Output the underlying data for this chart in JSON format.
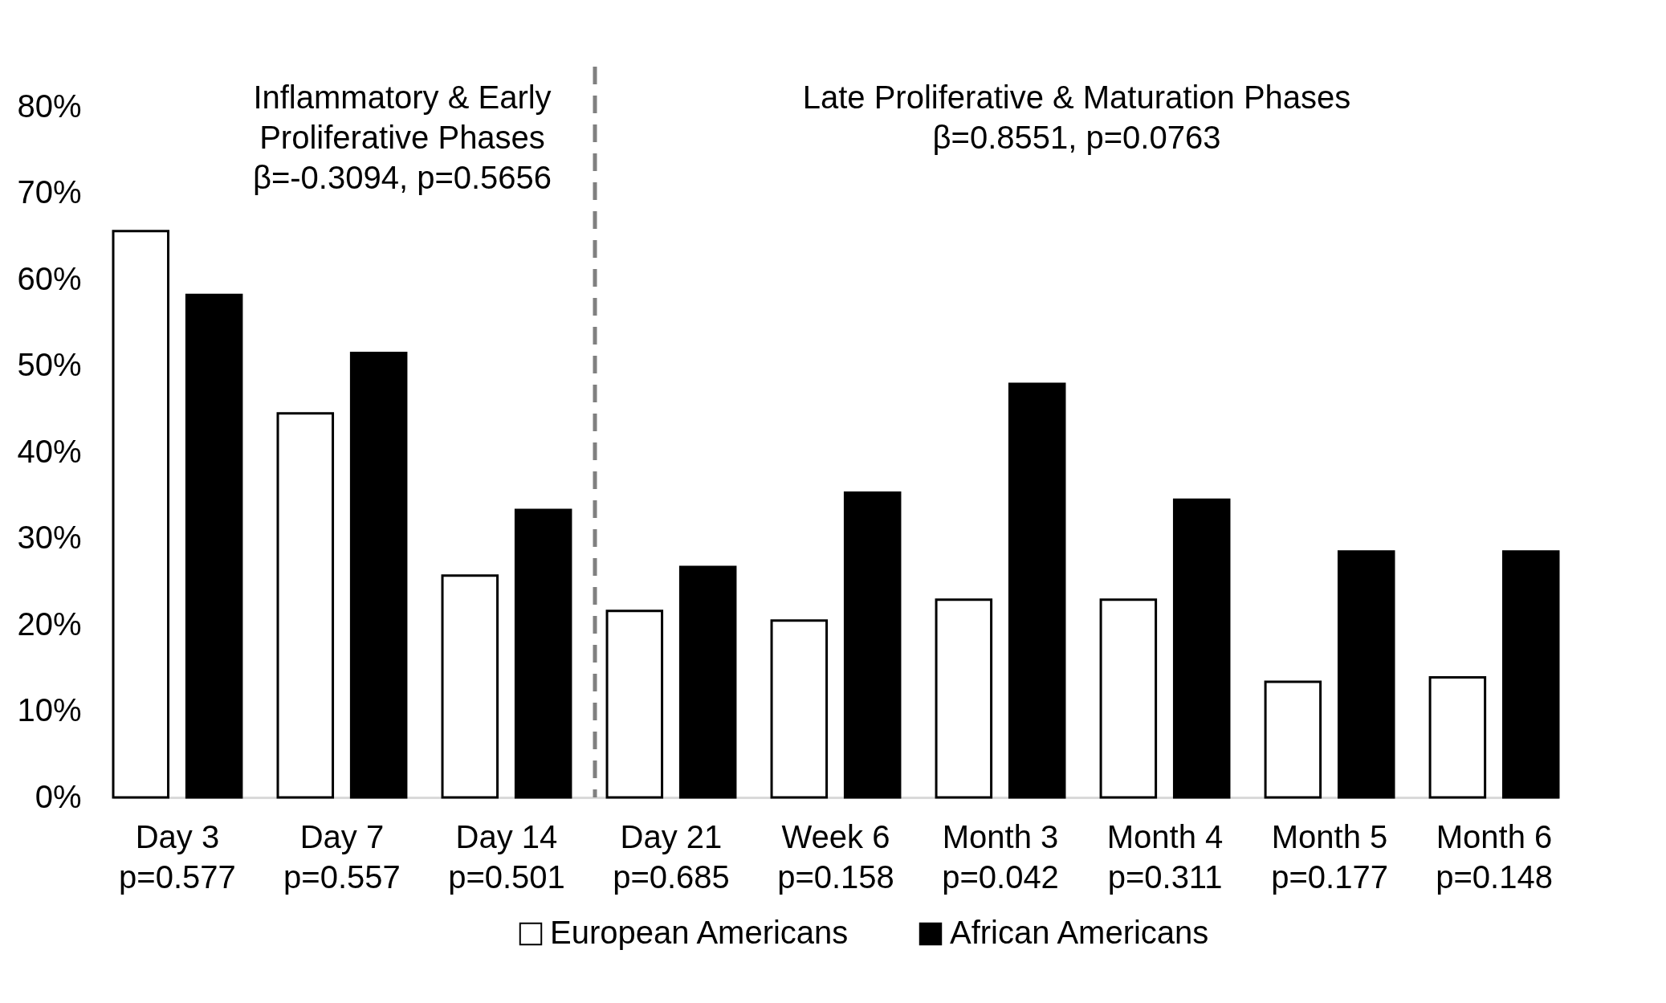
{
  "chart_data": {
    "type": "bar",
    "categories": [
      "Day 3\np=0.577",
      "Day 7\np=0.557",
      "Day 14\np=0.501",
      "Day 21\np=0.685",
      "Week 6\np=0.158",
      "Month 3\np=0.042",
      "Month 4\np=0.311",
      "Month 5\np=0.177",
      "Month 6\np=0.148"
    ],
    "series": [
      {
        "name": "European Americans",
        "color": "#ffffff",
        "values": [
          65.6,
          44.5,
          25.7,
          21.6,
          20.5,
          22.9,
          22.9,
          13.4,
          13.9
        ]
      },
      {
        "name": "African Americans",
        "color": "#000000",
        "values": [
          58.2,
          51.5,
          33.3,
          26.7,
          35.3,
          47.9,
          34.5,
          28.5,
          28.5
        ]
      }
    ],
    "ylim": [
      0,
      80
    ],
    "yticks": [
      {
        "value": 0,
        "label": "0%"
      },
      {
        "value": 10,
        "label": "10%"
      },
      {
        "value": 20,
        "label": "20%"
      },
      {
        "value": 30,
        "label": "30%"
      },
      {
        "value": 40,
        "label": "40%"
      },
      {
        "value": 50,
        "label": "50%"
      },
      {
        "value": 60,
        "label": "60%"
      },
      {
        "value": 70,
        "label": "70%"
      },
      {
        "value": 80,
        "label": "80%"
      }
    ],
    "annotations": [
      "Inflammatory & Early\nProliferative Phases\nβ=-0.3094, p=0.5656",
      "Late Proliferative & Maturation Phases\nβ=0.8551, p=0.0763"
    ],
    "grid": false,
    "legend": "bottom"
  }
}
